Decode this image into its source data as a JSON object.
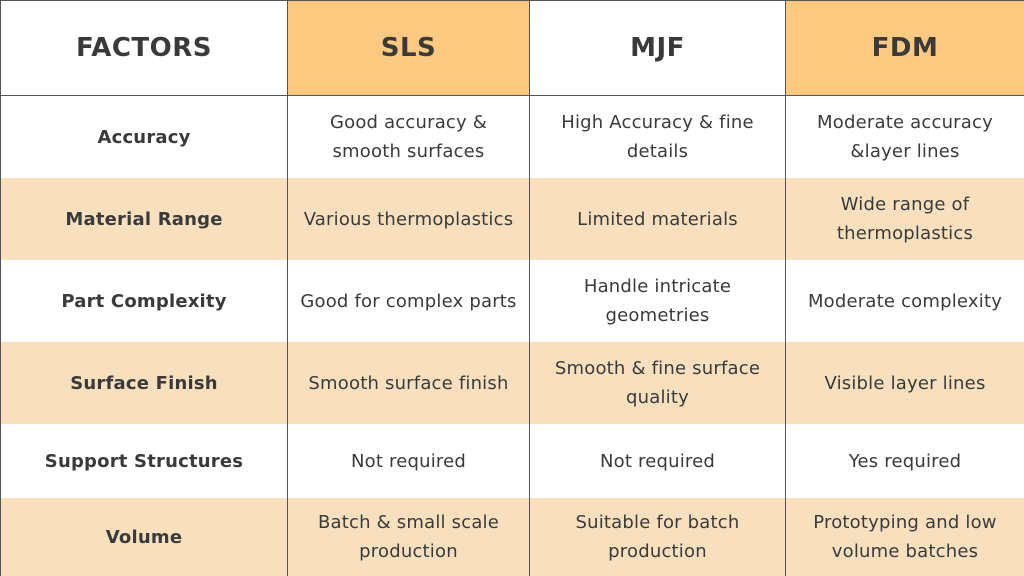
{
  "colors": {
    "header_highlight": "#fcc980",
    "row_alt": "#f8e0bf",
    "row_plain": "#ffffff",
    "text": "#3a3a3a"
  },
  "headers": [
    "FACTORS",
    "SLS",
    "MJF",
    "FDM"
  ],
  "rows": [
    {
      "factor": "Accuracy",
      "sls": "Good accuracy & smooth surfaces",
      "mjf": "High Accuracy & fine details",
      "fdm": "Moderate accuracy &layer lines"
    },
    {
      "factor": "Material Range",
      "sls": "Various thermoplastics",
      "mjf": "Limited materials",
      "fdm": "Wide range of thermoplastics"
    },
    {
      "factor": "Part Complexity",
      "sls": "Good for complex parts",
      "mjf": "Handle intricate geometries",
      "fdm": "Moderate complexity"
    },
    {
      "factor": "Surface Finish",
      "sls": "Smooth surface finish",
      "mjf": "Smooth & fine surface quality",
      "fdm": "Visible layer lines"
    },
    {
      "factor": "Support Structures",
      "sls": "Not required",
      "mjf": "Not required",
      "fdm": "Yes required"
    },
    {
      "factor": "Volume",
      "sls": "Batch & small scale production",
      "mjf": "Suitable for batch production",
      "fdm": "Prototyping and low volume batches"
    }
  ]
}
